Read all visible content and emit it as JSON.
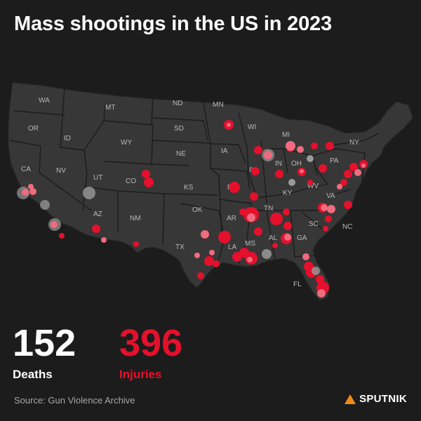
{
  "title": "Mass shootings in the US in 2023",
  "stats": {
    "deaths_value": "152",
    "deaths_label": "Deaths",
    "injuries_value": "396",
    "injuries_label": "Injuries"
  },
  "source": "Source: Gun Violence Archive",
  "brand": {
    "name": "SPUTNIK",
    "icon": "sputnik-logo-icon"
  },
  "colors": {
    "background": "#1c1c1c",
    "land": "#373737",
    "border": "#1c1c1c",
    "injury_red": "#e5102c",
    "incident_pink": "#f06b7e",
    "incident_grey": "#9a9a9a"
  },
  "states": [
    "WA",
    "OR",
    "CA",
    "NV",
    "ID",
    "MT",
    "WY",
    "UT",
    "AZ",
    "CO",
    "NM",
    "ND",
    "SD",
    "NE",
    "KS",
    "OK",
    "TX",
    "MN",
    "IA",
    "MO",
    "AR",
    "LA",
    "WI",
    "IL",
    "MS",
    "MI",
    "IN",
    "OH",
    "KY",
    "TN",
    "AL",
    "GA",
    "FL",
    "SC",
    "NC",
    "VA",
    "WV",
    "PA",
    "NY"
  ]
}
